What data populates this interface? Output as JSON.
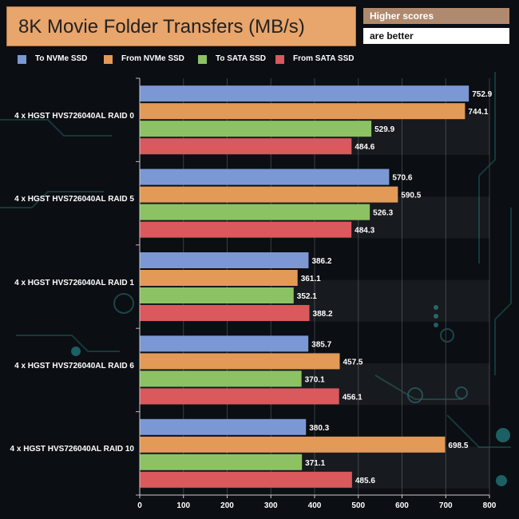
{
  "header": {
    "title": "8K Movie Folder Transfers (MB/s)",
    "note_line1": "Higher scores",
    "note_line2": "are better"
  },
  "chart_data": {
    "type": "bar",
    "orientation": "horizontal",
    "title": "8K Movie Folder Transfers (MB/s)",
    "categories": [
      "4 x HGST HVS726040AL RAID 0",
      "4 x HGST HVS726040AL RAID 5",
      "4 x HGST HVS726040AL RAID 1",
      "4 x HGST HVS726040AL RAID 6",
      "4 x HGST HVS726040AL RAID 10"
    ],
    "series": [
      {
        "name": "To NVMe SSD",
        "color": "#7b98d4",
        "values": [
          752.9,
          570.6,
          386.2,
          385.7,
          380.3
        ]
      },
      {
        "name": "From NVMe SSD",
        "color": "#e39a57",
        "values": [
          744.1,
          590.5,
          361.1,
          457.5,
          698.5
        ]
      },
      {
        "name": "To SATA SSD",
        "color": "#8cc264",
        "values": [
          529.9,
          526.3,
          352.1,
          370.1,
          371.1
        ]
      },
      {
        "name": "From SATA SSD",
        "color": "#d9595d",
        "values": [
          484.6,
          484.3,
          388.2,
          456.1,
          485.6
        ]
      }
    ],
    "xlim": [
      0,
      800
    ],
    "xticks": [
      0,
      100,
      200,
      300,
      400,
      500,
      600,
      700,
      800
    ],
    "xlabel": "",
    "ylabel": "",
    "legend_position": "top",
    "grid": true,
    "data_labels": true
  }
}
